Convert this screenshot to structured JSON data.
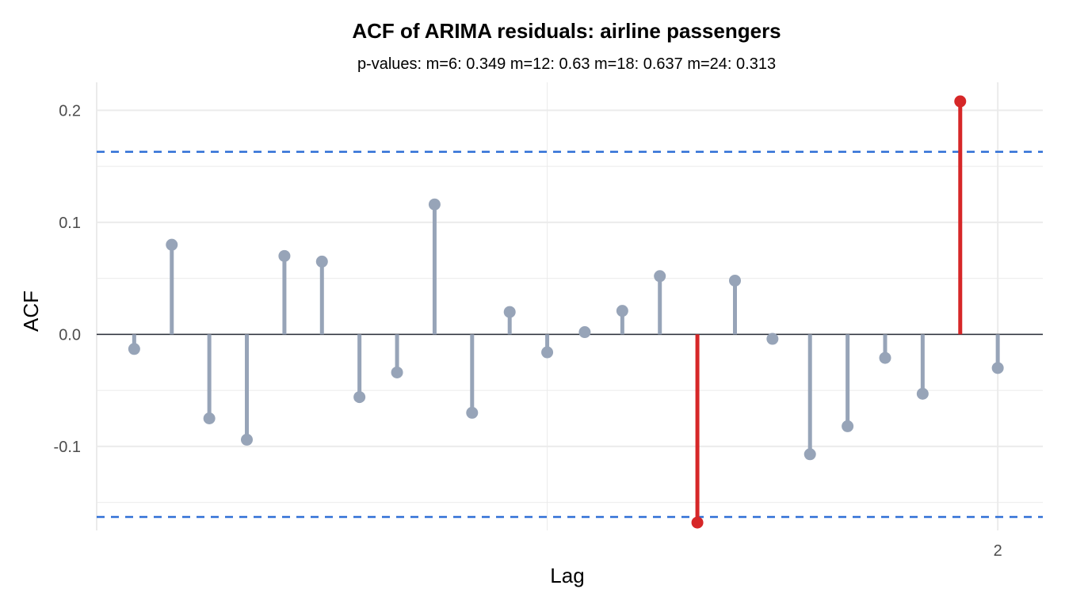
{
  "chart_data": {
    "type": "lollipop",
    "title": "ACF of ARIMA residuals: airline passengers",
    "subtitle": "p-values: m=6: 0.349  m=12: 0.63  m=18: 0.637  m=24: 0.313",
    "xlabel": "Lag",
    "ylabel": "ACF",
    "x_tick_labels": [
      {
        "value": 2.0,
        "label": "2"
      }
    ],
    "y_tick_labels": [
      {
        "value": -0.1,
        "label": "-0.1"
      },
      {
        "value": 0.0,
        "label": "0.0"
      },
      {
        "value": 0.1,
        "label": "0.1"
      },
      {
        "value": 0.2,
        "label": "0.2"
      }
    ],
    "xlim": [
      0,
      2.1
    ],
    "ylim": [
      -0.175,
      0.225
    ],
    "grid": true,
    "confidence_band": 0.163,
    "lags": [
      0.0833,
      0.1667,
      0.25,
      0.3333,
      0.4167,
      0.5,
      0.5833,
      0.6667,
      0.75,
      0.8333,
      0.9167,
      1.0,
      1.0833,
      1.1667,
      1.25,
      1.3333,
      1.4167,
      1.5,
      1.5833,
      1.6667,
      1.75,
      1.8333,
      1.9167,
      2.0
    ],
    "acf": [
      -0.013,
      0.08,
      -0.075,
      -0.094,
      0.07,
      0.065,
      -0.056,
      -0.034,
      0.116,
      -0.07,
      0.02,
      -0.016,
      0.002,
      0.021,
      0.052,
      -0.168,
      0.048,
      -0.004,
      -0.107,
      -0.082,
      -0.021,
      -0.053,
      0.208,
      -0.03
    ],
    "colors": {
      "normal": "#97a4b8",
      "significant": "#d62728",
      "band": "#2f6fd6",
      "zero_line": "#2b2f3a",
      "grid": "#ebebeb"
    }
  }
}
